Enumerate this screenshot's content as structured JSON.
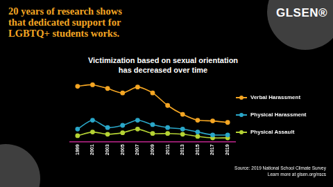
{
  "header": {
    "lines": [
      "20 years of research shows",
      "that dedicated support for",
      "LGBTQ+ students works."
    ],
    "logo": "GLSEN®"
  },
  "chart_data": {
    "type": "line",
    "title": "Victimization based on sexual orientation has decreased over time",
    "categories": [
      "1999",
      "2001",
      "2003",
      "2005",
      "2007",
      "2009",
      "2011",
      "2013",
      "2015",
      "2017",
      "2019"
    ],
    "series": [
      {
        "name": "Verbal Harassment",
        "color": "#f5a623",
        "values": [
          75,
          77,
          72,
          66,
          74,
          66,
          49,
          37,
          29,
          28,
          26
        ]
      },
      {
        "name": "Physical Harassment",
        "color": "#2aa7c9",
        "values": [
          17,
          29,
          19,
          22,
          29,
          23,
          19,
          17,
          13,
          9,
          9
        ]
      },
      {
        "name": "Physical Assault",
        "color": "#b5d334",
        "values": [
          8,
          13,
          10,
          12,
          17,
          11,
          11,
          10,
          7,
          5,
          5
        ]
      }
    ],
    "ylim": [
      0,
      90
    ],
    "tick_labels": "x",
    "grid": false,
    "legend": "right",
    "marker": "circle"
  },
  "footer": {
    "source": "Source: 2019 National School Climate Survey",
    "link": "Learn more at glsen.org/nscs"
  }
}
